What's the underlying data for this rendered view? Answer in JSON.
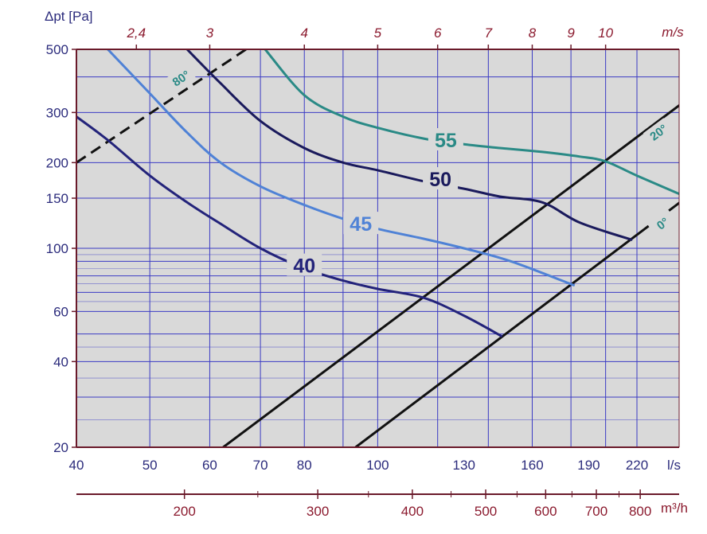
{
  "colors": {
    "plot_bg": "#d9d9d9",
    "grid": "#3b3bc4",
    "frame": "#6a1a2a",
    "blue_text": "#2b2b7c",
    "red_text": "#8b1a2e"
  },
  "chart_data": {
    "type": "line",
    "title": "",
    "xlabel": "l/s",
    "x_secondary_label": "m³/h",
    "ylabel": "Δpt [Pa]",
    "top_axis_label": "m/s",
    "x_scale": "log",
    "y_scale": "log",
    "xlim": [
      40,
      255
    ],
    "ylim": [
      20,
      500
    ],
    "grid": true,
    "x_ticks": [
      40,
      50,
      60,
      70,
      80,
      100,
      130,
      160,
      190,
      220
    ],
    "x_tick_labels": [
      "40",
      "50",
      "60",
      "70",
      "80",
      "100",
      "130",
      "160",
      "190",
      "220"
    ],
    "x_minor_gridlines": [
      40,
      50,
      60,
      70,
      80,
      90,
      100,
      120,
      140,
      160,
      180,
      200,
      220
    ],
    "y_ticks": [
      20,
      40,
      60,
      100,
      150,
      200,
      300,
      500
    ],
    "y_tick_labels": [
      "20",
      "40",
      "60",
      "100",
      "150",
      "200",
      "300",
      "500"
    ],
    "y_minor_gridlines": [
      20,
      30,
      40,
      50,
      60,
      70,
      80,
      90,
      100,
      150,
      200,
      300,
      400,
      500
    ],
    "m3h_ticks": [
      200,
      300,
      400,
      500,
      600,
      700,
      800
    ],
    "m3h_tick_labels": [
      "200",
      "300",
      "400",
      "500",
      "600",
      "700",
      "800"
    ],
    "m3h_minor_ticks": [
      250,
      350,
      450,
      550,
      650,
      750
    ],
    "velocity_ticks": [
      {
        "label": "2,4",
        "flow": 48
      },
      {
        "label": "3",
        "flow": 60
      },
      {
        "label": "4",
        "flow": 80
      },
      {
        "label": "5",
        "flow": 100
      },
      {
        "label": "6",
        "flow": 120
      },
      {
        "label": "7",
        "flow": 140
      },
      {
        "label": "8",
        "flow": 160
      },
      {
        "label": "9",
        "flow": 180
      },
      {
        "label": "10",
        "flow": 200
      }
    ],
    "series": [
      {
        "name": "40",
        "color": "#23237a",
        "points": [
          [
            40,
            290
          ],
          [
            44,
            240
          ],
          [
            50,
            180
          ],
          [
            56,
            145
          ],
          [
            62,
            122
          ],
          [
            70,
            100
          ],
          [
            80,
            85
          ],
          [
            90,
            77
          ],
          [
            100,
            72
          ],
          [
            115,
            67
          ],
          [
            130,
            58
          ],
          [
            146,
            49
          ]
        ],
        "label_at": [
          80,
          87
        ]
      },
      {
        "name": "45",
        "color": "#4f82d6",
        "points": [
          [
            44,
            500
          ],
          [
            50,
            350
          ],
          [
            56,
            255
          ],
          [
            62,
            200
          ],
          [
            70,
            165
          ],
          [
            80,
            142
          ],
          [
            90,
            127
          ],
          [
            100,
            117
          ],
          [
            115,
            108
          ],
          [
            130,
            100
          ],
          [
            150,
            90
          ],
          [
            182,
            74
          ]
        ],
        "label_at": [
          95,
          122
        ]
      },
      {
        "name": "50",
        "color": "#1a1a5c",
        "points": [
          [
            56,
            500
          ],
          [
            62,
            380
          ],
          [
            70,
            280
          ],
          [
            80,
            225
          ],
          [
            90,
            200
          ],
          [
            100,
            188
          ],
          [
            115,
            172
          ],
          [
            130,
            162
          ],
          [
            145,
            152
          ],
          [
            165,
            145
          ],
          [
            185,
            123
          ],
          [
            217,
            107
          ]
        ],
        "label_at": [
          121,
          175
        ]
      },
      {
        "name": "55",
        "color": "#2a8a86",
        "points": [
          [
            71,
            500
          ],
          [
            80,
            345
          ],
          [
            90,
            290
          ],
          [
            100,
            265
          ],
          [
            115,
            243
          ],
          [
            130,
            232
          ],
          [
            145,
            225
          ],
          [
            165,
            218
          ],
          [
            185,
            210
          ],
          [
            200,
            202
          ],
          [
            220,
            180
          ],
          [
            255,
            152
          ]
        ],
        "label_at": [
          123,
          240
        ]
      }
    ],
    "angle_lines": [
      {
        "name": "80°",
        "style": "dashed",
        "points": [
          [
            40,
            200
          ],
          [
            67,
            500
          ]
        ],
        "label": "80°",
        "label_at": [
          55,
          395
        ]
      },
      {
        "name": "20°",
        "style": "solid",
        "points": [
          [
            62.5,
            20
          ],
          [
            255,
            330
          ]
        ],
        "label": "20°",
        "label_at": [
          235,
          255
        ]
      },
      {
        "name": "0°",
        "style": "solid",
        "points": [
          [
            93.5,
            20
          ],
          [
            255,
            150
          ]
        ],
        "label": "0°",
        "label_at": [
          238,
          122
        ]
      }
    ]
  }
}
